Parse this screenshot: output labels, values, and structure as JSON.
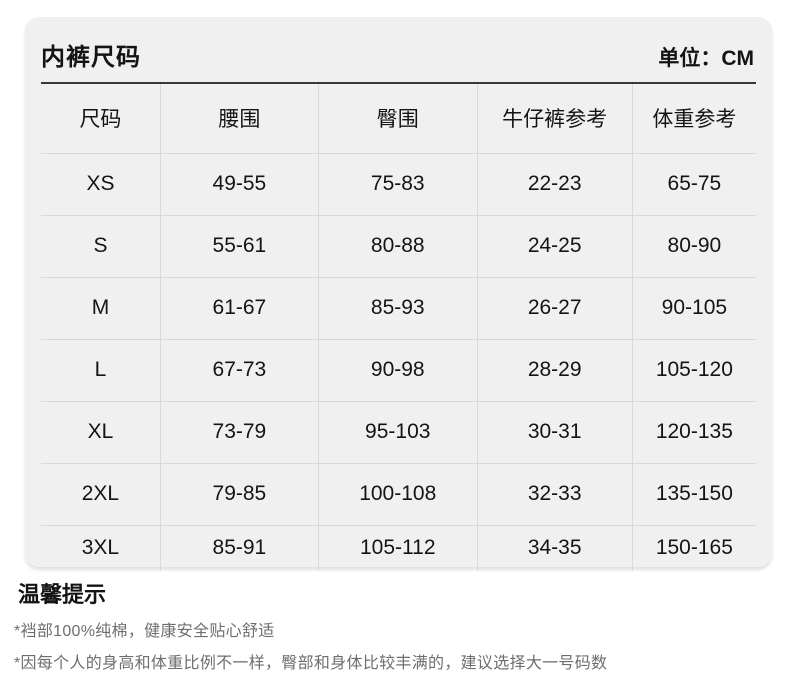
{
  "card": {
    "title": "内裤尺码",
    "unit_label": "单位：CM"
  },
  "table": {
    "columns": [
      "尺码",
      "腰围",
      "臀围",
      "牛仔裤参考",
      "体重参考"
    ],
    "column_keys": [
      "size",
      "waist",
      "hip",
      "jeans-ref",
      "weight-ref"
    ],
    "rows": [
      [
        "XS",
        "49-55",
        "75-83",
        "22-23",
        "65-75"
      ],
      [
        "S",
        "55-61",
        "80-88",
        "24-25",
        "80-90"
      ],
      [
        "M",
        "61-67",
        "85-93",
        "26-27",
        "90-105"
      ],
      [
        "L",
        "67-73",
        "90-98",
        "28-29",
        "105-120"
      ],
      [
        "XL",
        "73-79",
        "95-103",
        "30-31",
        "120-135"
      ],
      [
        "2XL",
        "79-85",
        "100-108",
        "32-33",
        "135-150"
      ],
      [
        "3XL",
        "85-91",
        "105-112",
        "34-35",
        "150-165"
      ]
    ]
  },
  "tips": {
    "heading": "温馨提示",
    "notes": [
      "*裆部100%纯棉，健康安全贴心舒适",
      "*因每个人的身高和体重比例不一样，臀部和身体比较丰满的，建议选择大一号码数"
    ]
  },
  "colors": {
    "card_background": "#f0f0f0",
    "grid_line": "#d9d9d9",
    "header_underline": "#383838",
    "text": "#141414",
    "note_text": "#6e6e6e"
  }
}
